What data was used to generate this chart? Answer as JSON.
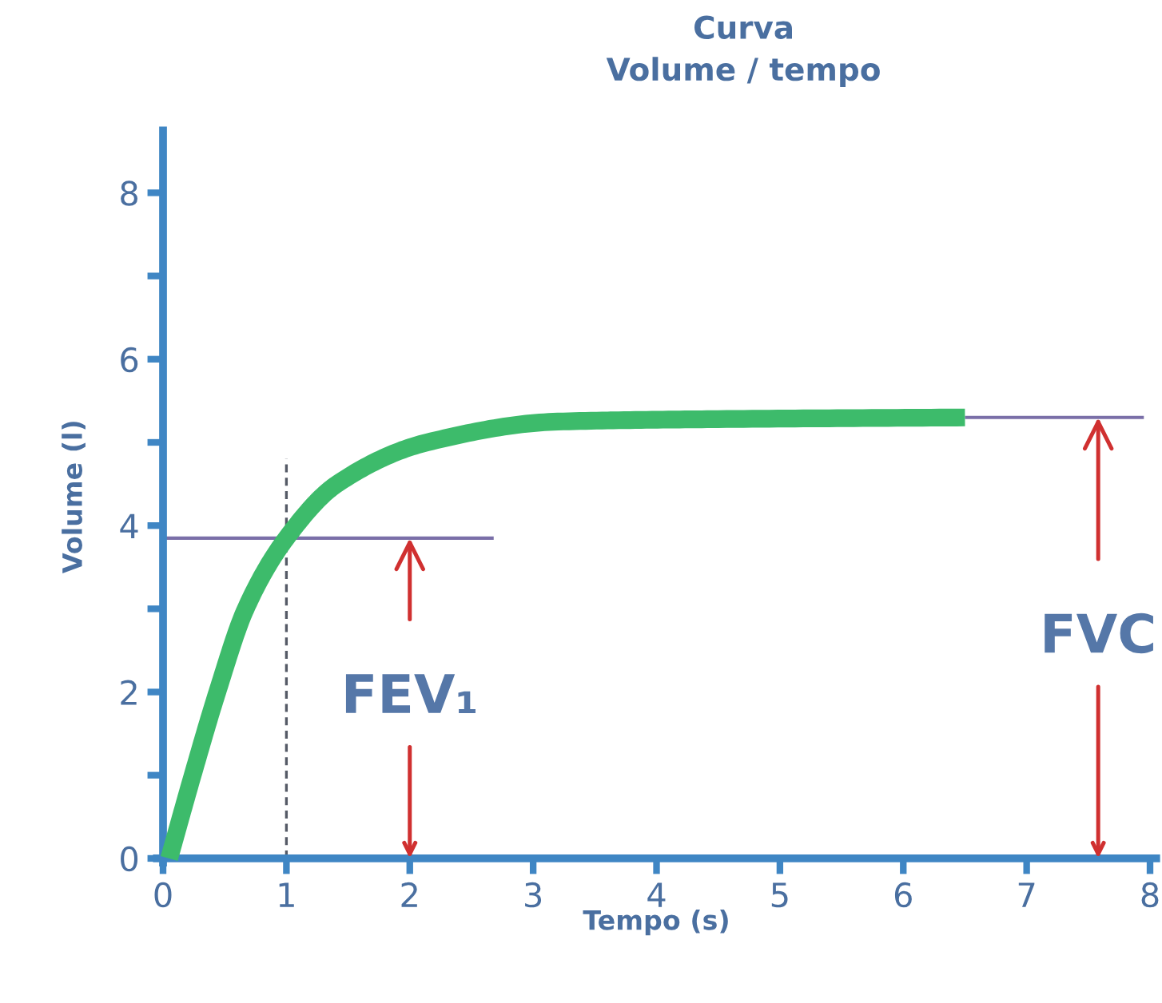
{
  "chart_data": {
    "type": "line",
    "title": "Curva\nVolume / tempo",
    "xlabel": "Tempo (s)",
    "ylabel": "Volume (l)",
    "series": [
      {
        "color": "#3dbb6b",
        "x": [
          0.05,
          0.24,
          0.44,
          0.67,
          1.0,
          1.41,
          2.14,
          3.2,
          4.5,
          6.5
        ],
        "values": [
          0,
          1,
          2,
          3,
          3.85,
          4.5,
          5.0,
          5.25,
          5.28,
          5.3
        ]
      },
      {
        "color": "#7a6fa8",
        "x": [
          0,
          2.68
        ],
        "values": [
          3.85,
          3.85
        ]
      },
      {
        "color": "#7a6fa8",
        "x": [
          6.5,
          7.95
        ],
        "values": [
          5.3,
          5.3
        ]
      },
      {
        "color": "#555a66",
        "x": [
          1,
          1
        ],
        "values": [
          0,
          4.8
        ],
        "line_style": "dashed"
      }
    ],
    "annotations": [
      {
        "text": "FEV₁",
        "x": 2,
        "y": 3.85
      },
      {
        "text": "FVC",
        "x": 7.58,
        "y": 5.3
      }
    ],
    "xlim": [
      -0.05,
      8.05
    ],
    "ylim": [
      -0.05,
      8.75
    ],
    "xticks": [
      0,
      1,
      2,
      3,
      4,
      5,
      6,
      7,
      8
    ],
    "yticks": [
      0,
      {
        "value": 1,
        "label": null
      },
      2,
      {
        "value": 3,
        "label": null
      },
      4,
      {
        "value": 5,
        "label": null
      },
      6,
      {
        "value": 7,
        "label": null
      },
      8
    ],
    "grid": false,
    "legend": false,
    "marker": "none",
    "line_style": "solid"
  }
}
